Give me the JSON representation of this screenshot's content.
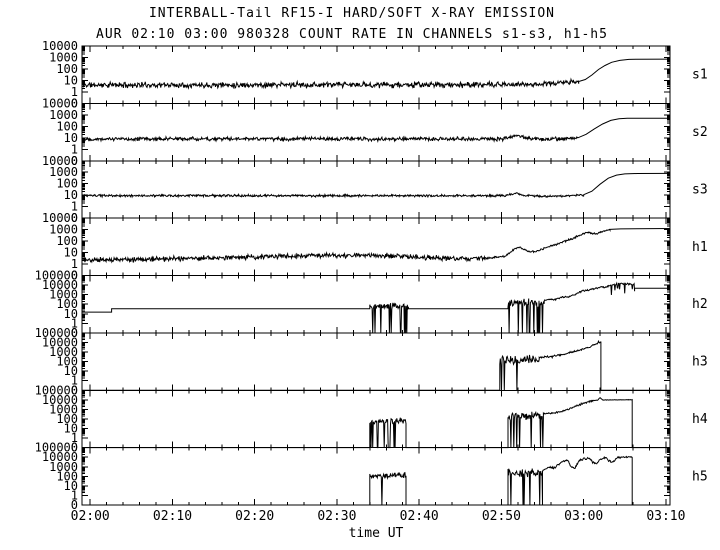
{
  "colors": {
    "foreground": "#000000",
    "background": "#ffffff"
  },
  "chart_data": {
    "type": "line",
    "title": "INTERBALL-Tail RF15-I HARD/SOFT X-RAY EMISSION",
    "subtitle": "AUR 02:10 03:00 980328  COUNT RATE IN CHANNELS s1-s3, h1-h5",
    "xlabel": "time UT",
    "y_scale": "log",
    "x_axis": {
      "start_label": "02:00",
      "end_label": "03:10",
      "major_tick_minutes": 10,
      "minor_tick_minutes": 2
    },
    "x_ticks": [
      {
        "t": 0,
        "label": "02:00"
      },
      {
        "t": 10,
        "label": "02:10"
      },
      {
        "t": 20,
        "label": "02:20"
      },
      {
        "t": 30,
        "label": "02:30"
      },
      {
        "t": 40,
        "label": "02:40"
      },
      {
        "t": 50,
        "label": "02:50"
      },
      {
        "t": 60,
        "label": "03:00"
      },
      {
        "t": 70,
        "label": "03:10"
      }
    ],
    "panels": [
      {
        "channel": "s1",
        "top_value": 10000,
        "seed": 11,
        "y_tick_labels": [
          "10000",
          "1000",
          "100",
          "10",
          "1",
          "0"
        ],
        "segments": [
          {
            "points": [
              [
                -1,
                4
              ],
              [
                50,
                4.2
              ]
            ],
            "noise": 0.3
          },
          {
            "points": [
              [
                50,
                4.2
              ],
              [
                55,
                4.8
              ],
              [
                57.5,
                6.5
              ],
              [
                58.6,
                8
              ],
              [
                59.4,
                6.5
              ]
            ],
            "noise": 0.25
          },
          {
            "points": [
              [
                59.4,
                8
              ],
              [
                60.2,
                12
              ],
              [
                61,
                30
              ],
              [
                61.8,
                90
              ],
              [
                62.6,
                200
              ],
              [
                63.4,
                380
              ],
              [
                64.4,
                560
              ],
              [
                65.5,
                680
              ],
              [
                66.5,
                710
              ],
              [
                70.5,
                720
              ]
            ],
            "noise": 0
          }
        ]
      },
      {
        "channel": "s2",
        "top_value": 10000,
        "seed": 22,
        "y_tick_labels": [
          "10000",
          "1000",
          "100",
          "10",
          "1",
          "0"
        ],
        "segments": [
          {
            "points": [
              [
                -1,
                8
              ],
              [
                50.3,
                8
              ]
            ],
            "noise": 0.2
          },
          {
            "points": [
              [
                50.3,
                9
              ],
              [
                51.8,
                15
              ],
              [
                53.2,
                9
              ],
              [
                55,
                7.5
              ],
              [
                57.5,
                8
              ],
              [
                58.7,
                10
              ],
              [
                59.3,
                8.5
              ]
            ],
            "noise": 0.18
          },
          {
            "points": [
              [
                59.3,
                10
              ],
              [
                60.3,
                20
              ],
              [
                61.3,
                60
              ],
              [
                62.3,
                160
              ],
              [
                63.3,
                330
              ],
              [
                64.3,
                450
              ],
              [
                65.3,
                500
              ],
              [
                70.5,
                515
              ]
            ],
            "noise": 0
          }
        ]
      },
      {
        "channel": "s3",
        "top_value": 10000,
        "seed": 33,
        "y_tick_labels": [
          "10000",
          "1000",
          "100",
          "10",
          "1",
          "0"
        ],
        "segments": [
          {
            "points": [
              [
                -1,
                9
              ],
              [
                50.3,
                9
              ]
            ],
            "noise": 0.12
          },
          {
            "points": [
              [
                50.3,
                9.5
              ],
              [
                51.8,
                14
              ],
              [
                53.2,
                9
              ],
              [
                55.5,
                8
              ],
              [
                58.2,
                8.5
              ],
              [
                59.5,
                11
              ],
              [
                60,
                10
              ]
            ],
            "noise": 0.11
          },
          {
            "points": [
              [
                60,
                11
              ],
              [
                61,
                22
              ],
              [
                62,
                90
              ],
              [
                63,
                300
              ],
              [
                64,
                560
              ],
              [
                65,
                720
              ],
              [
                66.5,
                780
              ],
              [
                70.5,
                790
              ]
            ],
            "noise": 0
          }
        ]
      },
      {
        "channel": "h1",
        "top_value": 10000,
        "seed": 44,
        "y_tick_labels": [
          "10000",
          "1000",
          "100",
          "10",
          "1",
          "0"
        ],
        "segments": [
          {
            "points": [
              [
                -1,
                2.2
              ],
              [
                8,
                2.6
              ],
              [
                18,
                4
              ],
              [
                27,
                5.5
              ],
              [
                36,
                5.5
              ],
              [
                43,
                3.2
              ],
              [
                48,
                3
              ]
            ],
            "noise": 0.26
          },
          {
            "points": [
              [
                48,
                3.2
              ],
              [
                50.4,
                4.5
              ],
              [
                51.6,
                22
              ],
              [
                52.2,
                30
              ],
              [
                53.2,
                13
              ],
              [
                54.2,
                12
              ],
              [
                55.6,
                30
              ],
              [
                56.6,
                48
              ],
              [
                57.6,
                90
              ],
              [
                58.6,
                160
              ],
              [
                59.4,
                300
              ],
              [
                60.1,
                480
              ],
              [
                60.7,
                560
              ],
              [
                61.3,
                430
              ],
              [
                61.9,
                520
              ],
              [
                62.6,
                820
              ],
              [
                63.2,
                1000
              ]
            ],
            "noise": 0.1
          },
          {
            "points": [
              [
                63.2,
                1050
              ],
              [
                64.5,
                1150
              ],
              [
                70.5,
                1250
              ]
            ],
            "noise": 0
          }
        ]
      },
      {
        "channel": "h2",
        "top_value": 100000,
        "seed": 55,
        "y_tick_labels": [
          "100000",
          "10000",
          "1000",
          "100",
          "10",
          "1",
          "0"
        ],
        "segments": [
          {
            "points": [
              [
                -1,
                15
              ],
              [
                2.6,
                15
              ]
            ],
            "noise": 0
          },
          {
            "points": [
              [
                2.6,
                33
              ],
              [
                34,
                33
              ]
            ],
            "noise": 0
          },
          {
            "points": [
              [
                34,
                65
              ],
              [
                38.7,
                70
              ]
            ],
            "noise": 0.42,
            "dropout": 0.13
          },
          {
            "points": [
              [
                38.7,
                33
              ],
              [
                50.8,
                33
              ]
            ],
            "noise": 0
          },
          {
            "points": [
              [
                50.8,
                130
              ],
              [
                55.2,
                160
              ]
            ],
            "noise": 0.5,
            "dropout": 0.13
          },
          {
            "points": [
              [
                55.2,
                230
              ],
              [
                56,
                340
              ],
              [
                56.6,
                310
              ],
              [
                57.4,
                560
              ],
              [
                58.2,
                620
              ],
              [
                59,
                1100
              ],
              [
                59.8,
                2300
              ],
              [
                60.4,
                2700
              ],
              [
                61.1,
                3900
              ],
              [
                62,
                6200
              ],
              [
                62.7,
                5800
              ],
              [
                63.3,
                9500
              ]
            ],
            "noise": 0.12
          },
          {
            "points": [
              [
                63.3,
                10000
              ],
              [
                64.3,
                14500
              ],
              [
                65.2,
                13500
              ],
              [
                66.2,
                12000
              ]
            ],
            "noise": 0.1,
            "spikes": 0.18
          },
          {
            "points": [
              [
                66.2,
                4600
              ],
              [
                70.5,
                4600
              ]
            ],
            "noise": 0
          }
        ]
      },
      {
        "channel": "h3",
        "top_value": 100000,
        "seed": 66,
        "y_tick_labels": [
          "100000",
          "10000",
          "1000",
          "100",
          "10",
          "1",
          "0"
        ],
        "segments": [
          {
            "points": [
              [
                -1,
                0
              ],
              [
                49.8,
                0
              ]
            ]
          },
          {
            "points": [
              [
                49.8,
                140
              ],
              [
                54.6,
                180
              ]
            ],
            "noise": 0.5,
            "dropout": 0.13
          },
          {
            "points": [
              [
                54.6,
                260
              ],
              [
                55.4,
                330
              ],
              [
                56.1,
                300
              ],
              [
                56.9,
                520
              ],
              [
                57.7,
                560
              ],
              [
                58.5,
                980
              ],
              [
                59.3,
                1450
              ],
              [
                60.1,
                2300
              ],
              [
                60.8,
                3300
              ],
              [
                61.3,
                6500
              ],
              [
                61.8,
                10500
              ],
              [
                62.1,
                11000
              ]
            ],
            "noise": 0.12
          },
          {
            "points": [
              [
                62.1,
                0
              ],
              [
                70.5,
                0
              ]
            ]
          }
        ]
      },
      {
        "channel": "h4",
        "top_value": 100000,
        "seed": 77,
        "y_tick_labels": [
          "100000",
          "10000",
          "1000",
          "100",
          "10",
          "1",
          "0"
        ],
        "segments": [
          {
            "points": [
              [
                -1,
                0
              ],
              [
                34,
                0
              ]
            ]
          },
          {
            "points": [
              [
                34,
                55
              ],
              [
                38.4,
                62
              ]
            ],
            "noise": 0.4,
            "dropout": 0.15
          },
          {
            "points": [
              [
                38.4,
                0
              ],
              [
                50.8,
                0
              ]
            ]
          },
          {
            "points": [
              [
                50.8,
                170
              ],
              [
                55.1,
                210
              ]
            ],
            "noise": 0.5,
            "dropout": 0.13
          },
          {
            "points": [
              [
                55.1,
                320
              ],
              [
                55.9,
                430
              ],
              [
                56.5,
                390
              ],
              [
                57.3,
                660
              ],
              [
                58.1,
                920
              ],
              [
                58.9,
                1850
              ],
              [
                59.7,
                3600
              ],
              [
                60.4,
                6100
              ],
              [
                61.1,
                8200
              ]
            ],
            "noise": 0.12
          },
          {
            "points": [
              [
                61.1,
                8200
              ],
              [
                61.7,
                9200
              ],
              [
                62,
                16500
              ],
              [
                62.3,
                9800
              ],
              [
                63.2,
                9600
              ],
              [
                65.9,
                10200
              ]
            ],
            "noise": 0.03
          },
          {
            "points": [
              [
                65.9,
                0
              ],
              [
                70.5,
                0
              ]
            ]
          }
        ]
      },
      {
        "channel": "h5",
        "top_value": 100000,
        "seed": 88,
        "y_tick_labels": [
          "100000",
          "10000",
          "1000",
          "100",
          "10",
          "1",
          "0"
        ],
        "segments": [
          {
            "points": [
              [
                -1,
                0
              ],
              [
                34,
                0
              ]
            ]
          },
          {
            "points": [
              [
                34,
                115
              ],
              [
                38.4,
                125
              ]
            ],
            "noise": 0.35,
            "dropout": 0.07
          },
          {
            "points": [
              [
                38.4,
                0
              ],
              [
                50.8,
                0
              ]
            ]
          },
          {
            "points": [
              [
                50.8,
                210
              ],
              [
                55,
                270
              ]
            ],
            "noise": 0.5,
            "dropout": 0.13
          },
          {
            "points": [
              [
                55,
                420
              ],
              [
                55.8,
                820
              ],
              [
                56.4,
                720
              ],
              [
                57,
                1850
              ],
              [
                57.6,
                3900
              ],
              [
                58.1,
                4600
              ],
              [
                58.5,
                850
              ],
              [
                58.9,
                680
              ],
              [
                59.4,
                4300
              ],
              [
                60,
                6600
              ],
              [
                60.7,
                7900
              ],
              [
                61.1,
                2900
              ],
              [
                61.6,
                2300
              ],
              [
                62.1,
                6600
              ],
              [
                62.7,
                8900
              ],
              [
                63.1,
                3900
              ],
              [
                63.6,
                3300
              ],
              [
                64.1,
                8600
              ],
              [
                64.7,
                10200
              ],
              [
                65.9,
                9800
              ]
            ],
            "noise": 0.14
          },
          {
            "points": [
              [
                65.9,
                0
              ],
              [
                70.5,
                0
              ]
            ]
          }
        ]
      }
    ]
  }
}
